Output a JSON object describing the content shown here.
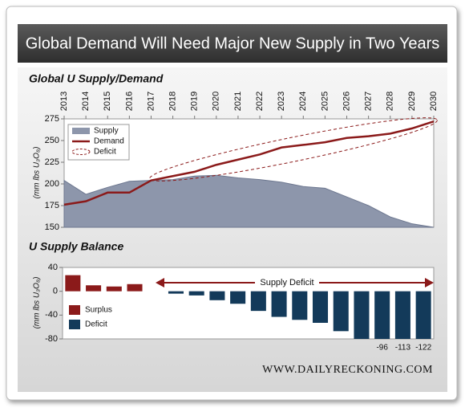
{
  "title": "Global Demand Will Need Major New Supply in Two Years",
  "footer": "WWW.DAILYRECKONING.COM",
  "chart_data": [
    {
      "type": "area",
      "title": "Global U Supply/Demand",
      "y_label": "(mm lbs U₃O₈)",
      "x": [
        2013,
        2014,
        2015,
        2016,
        2017,
        2018,
        2019,
        2020,
        2021,
        2022,
        2023,
        2024,
        2025,
        2026,
        2027,
        2028,
        2029,
        2030
      ],
      "xlim": [
        2013,
        2030
      ],
      "xticks": [
        2013,
        2014,
        2015,
        2016,
        2017,
        2018,
        2019,
        2020,
        2021,
        2022,
        2023,
        2024,
        2025,
        2026,
        2027,
        2028,
        2029,
        2030
      ],
      "ylim": [
        150,
        275
      ],
      "yticks": [
        150,
        175,
        200,
        225,
        250,
        275
      ],
      "series": [
        {
          "name": "Supply",
          "type": "area",
          "color": "#8d96ab",
          "values": [
            204,
            188,
            196,
            203,
            204,
            205,
            209,
            210,
            207,
            205,
            202,
            197,
            195,
            185,
            175,
            162,
            154,
            150
          ]
        },
        {
          "name": "Demand",
          "type": "line",
          "color": "#8b1a1a",
          "values": [
            176,
            180,
            190,
            190,
            204,
            209,
            214,
            222,
            228,
            234,
            242,
            245,
            248,
            253,
            255,
            258,
            264,
            272
          ]
        }
      ],
      "annotation": {
        "label": "Deficit",
        "color": "#8b1a1a"
      }
    },
    {
      "type": "bar",
      "title": "U Supply Balance",
      "y_label": "(mm lbs U₃O₈)",
      "ylim": [
        -80,
        40
      ],
      "yticks": [
        40,
        0,
        -40,
        -80
      ],
      "series": [
        {
          "name": "Surplus",
          "color": "#8b1a1a",
          "values": [
            27,
            10,
            8,
            12,
            null,
            null,
            null,
            null,
            null,
            null,
            null,
            null,
            null,
            null,
            null,
            null,
            null,
            null
          ]
        },
        {
          "name": "Deficit",
          "color": "#133a5a",
          "values": [
            null,
            null,
            null,
            null,
            null,
            -4,
            -7,
            -15,
            -21,
            -33,
            -43,
            -48,
            -53,
            -67,
            -82,
            -96,
            -113,
            -122
          ],
          "value_labels": [
            null,
            null,
            null,
            null,
            null,
            null,
            null,
            null,
            null,
            null,
            null,
            null,
            null,
            null,
            null,
            "-96",
            "-113",
            "-122"
          ]
        }
      ],
      "annotation": "Supply Deficit"
    }
  ]
}
